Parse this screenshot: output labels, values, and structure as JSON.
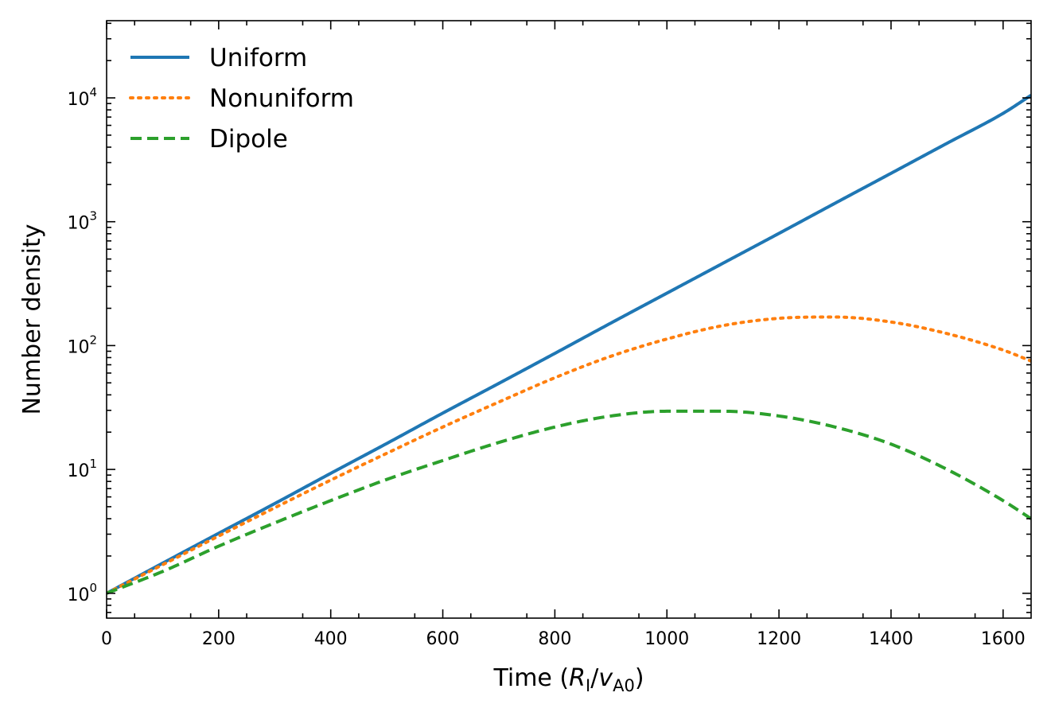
{
  "chart_data": {
    "type": "line",
    "xlabel": {
      "prefix": "Time (",
      "R": "R",
      "R_sub": "I",
      "slash": "/",
      "v": "v",
      "v_sub": "A0",
      "suffix": ")"
    },
    "ylabel": "Number density",
    "xlim": [
      0,
      1650
    ],
    "ylim": [
      0.63,
      42000
    ],
    "yscale": "log",
    "x_ticks": [
      0,
      200,
      400,
      600,
      800,
      1000,
      1200,
      1400,
      1600
    ],
    "y_ticks": [
      {
        "value": 1,
        "base": "10",
        "exp": "0"
      },
      {
        "value": 10,
        "base": "10",
        "exp": "1"
      },
      {
        "value": 100,
        "base": "10",
        "exp": "2"
      },
      {
        "value": 1000,
        "base": "10",
        "exp": "3"
      },
      {
        "value": 10000,
        "base": "10",
        "exp": "4"
      }
    ],
    "grid": false,
    "legend_position": "top-left",
    "series": [
      {
        "name": "Uniform",
        "style": "solid",
        "color": "#1f77b4",
        "x": [
          0,
          100,
          200,
          300,
          400,
          500,
          600,
          700,
          800,
          900,
          1000,
          1100,
          1200,
          1300,
          1400,
          1500,
          1600,
          1650
        ],
        "y": [
          1.0,
          1.75,
          3.05,
          5.3,
          9.3,
          16.2,
          28.5,
          49.5,
          86.5,
          152,
          265,
          462,
          805,
          1410,
          2460,
          4300,
          7500,
          10500
        ]
      },
      {
        "name": "Nonuniform",
        "style": "dotted",
        "color": "#ff7f0e",
        "x": [
          0,
          100,
          200,
          300,
          400,
          500,
          600,
          700,
          800,
          900,
          1000,
          1100,
          1200,
          1300,
          1400,
          1500,
          1600,
          1650
        ],
        "y": [
          1.0,
          1.7,
          2.9,
          4.9,
          8.2,
          13.5,
          22.0,
          35.0,
          55.0,
          82.0,
          113,
          145,
          166,
          170,
          155,
          125,
          92,
          75
        ]
      },
      {
        "name": "Dipole",
        "style": "dashed",
        "color": "#2ca02c",
        "x": [
          0,
          100,
          200,
          300,
          400,
          500,
          600,
          700,
          800,
          900,
          1000,
          1100,
          1200,
          1300,
          1400,
          1500,
          1600,
          1650
        ],
        "y": [
          1.0,
          1.5,
          2.4,
          3.7,
          5.6,
          8.3,
          11.8,
          16.5,
          22.0,
          27.0,
          29.5,
          29.5,
          27.0,
          22.0,
          16.0,
          10.0,
          5.6,
          4.0
        ]
      }
    ]
  }
}
